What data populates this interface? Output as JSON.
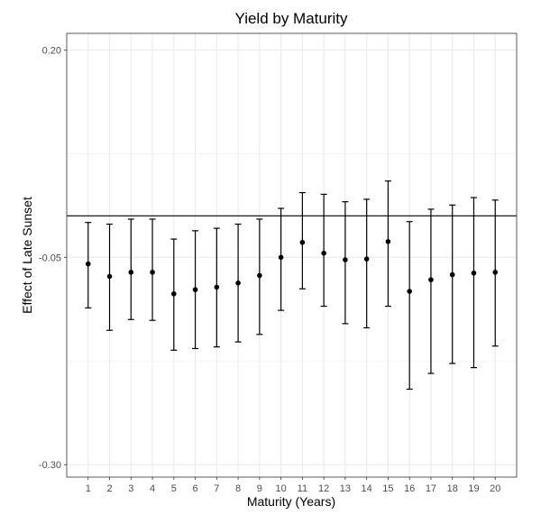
{
  "chart_data": {
    "type": "scatter",
    "title": "Yield by Maturity",
    "xlabel": "Maturity (Years)",
    "ylabel": "Effect of Late Sunset",
    "x": [
      1,
      2,
      3,
      4,
      5,
      6,
      7,
      8,
      9,
      10,
      11,
      12,
      13,
      14,
      15,
      16,
      17,
      18,
      19,
      20
    ],
    "series": [
      {
        "estimate": [
          -0.058,
          -0.073,
          -0.068,
          -0.068,
          -0.094,
          -0.089,
          -0.086,
          -0.081,
          -0.072,
          -0.05,
          -0.032,
          -0.045,
          -0.053,
          -0.052,
          -0.031,
          -0.091,
          -0.077,
          -0.071,
          -0.069,
          -0.068
        ],
        "lower": [
          -0.111,
          -0.138,
          -0.125,
          -0.126,
          -0.162,
          -0.16,
          -0.158,
          -0.152,
          -0.143,
          -0.114,
          -0.088,
          -0.109,
          -0.13,
          -0.135,
          -0.109,
          -0.209,
          -0.19,
          -0.178,
          -0.183,
          -0.157
        ],
        "upper": [
          -0.008,
          -0.01,
          -0.004,
          -0.004,
          -0.028,
          -0.018,
          -0.015,
          -0.01,
          -0.004,
          0.009,
          0.028,
          0.026,
          0.017,
          0.02,
          0.042,
          -0.007,
          0.008,
          0.013,
          0.022,
          0.019
        ]
      }
    ],
    "hline": 0,
    "xlim": [
      0,
      21
    ],
    "ylim": [
      -0.315,
      0.22
    ],
    "yticks": [
      0.2,
      -0.05,
      -0.3
    ],
    "ytick_labels": [
      "0.20",
      "-0.05",
      "-0.30"
    ],
    "grid": true,
    "legend": "none",
    "colors": {
      "points": "#000000",
      "grid": "#ebebeb",
      "border": "#333333"
    }
  }
}
